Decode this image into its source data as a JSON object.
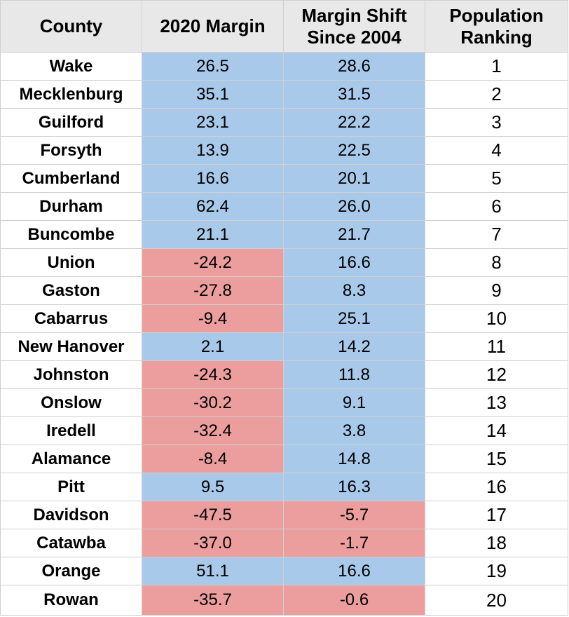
{
  "table": {
    "headers": [
      "County",
      "2020 Margin",
      "Margin Shift\nSince 2004",
      "Population\nRanking"
    ],
    "colors": {
      "positive": "#a8c9ea",
      "negative": "#ec9e9e",
      "header": "#e8e8e8"
    },
    "rows": [
      {
        "county": "Wake",
        "margin": "26.5",
        "shift": "28.6",
        "rank": "1"
      },
      {
        "county": "Mecklenburg",
        "margin": "35.1",
        "shift": "31.5",
        "rank": "2"
      },
      {
        "county": "Guilford",
        "margin": "23.1",
        "shift": "22.2",
        "rank": "3"
      },
      {
        "county": "Forsyth",
        "margin": "13.9",
        "shift": "22.5",
        "rank": "4"
      },
      {
        "county": "Cumberland",
        "margin": "16.6",
        "shift": "20.1",
        "rank": "5"
      },
      {
        "county": "Durham",
        "margin": "62.4",
        "shift": "26.0",
        "rank": "6"
      },
      {
        "county": "Buncombe",
        "margin": "21.1",
        "shift": "21.7",
        "rank": "7"
      },
      {
        "county": "Union",
        "margin": "-24.2",
        "shift": "16.6",
        "rank": "8"
      },
      {
        "county": "Gaston",
        "margin": "-27.8",
        "shift": "8.3",
        "rank": "9"
      },
      {
        "county": "Cabarrus",
        "margin": "-9.4",
        "shift": "25.1",
        "rank": "10"
      },
      {
        "county": "New Hanover",
        "margin": "2.1",
        "shift": "14.2",
        "rank": "11"
      },
      {
        "county": "Johnston",
        "margin": "-24.3",
        "shift": "11.8",
        "rank": "12"
      },
      {
        "county": "Onslow",
        "margin": "-30.2",
        "shift": "9.1",
        "rank": "13"
      },
      {
        "county": "Iredell",
        "margin": "-32.4",
        "shift": "3.8",
        "rank": "14"
      },
      {
        "county": "Alamance",
        "margin": "-8.4",
        "shift": "14.8",
        "rank": "15"
      },
      {
        "county": "Pitt",
        "margin": "9.5",
        "shift": "16.3",
        "rank": "16"
      },
      {
        "county": "Davidson",
        "margin": "-47.5",
        "shift": "-5.7",
        "rank": "17"
      },
      {
        "county": "Catawba",
        "margin": "-37.0",
        "shift": "-1.7",
        "rank": "18"
      },
      {
        "county": "Orange",
        "margin": "51.1",
        "shift": "16.6",
        "rank": "19"
      },
      {
        "county": "Rowan",
        "margin": "-35.7",
        "shift": "-0.6",
        "rank": "20"
      }
    ]
  }
}
